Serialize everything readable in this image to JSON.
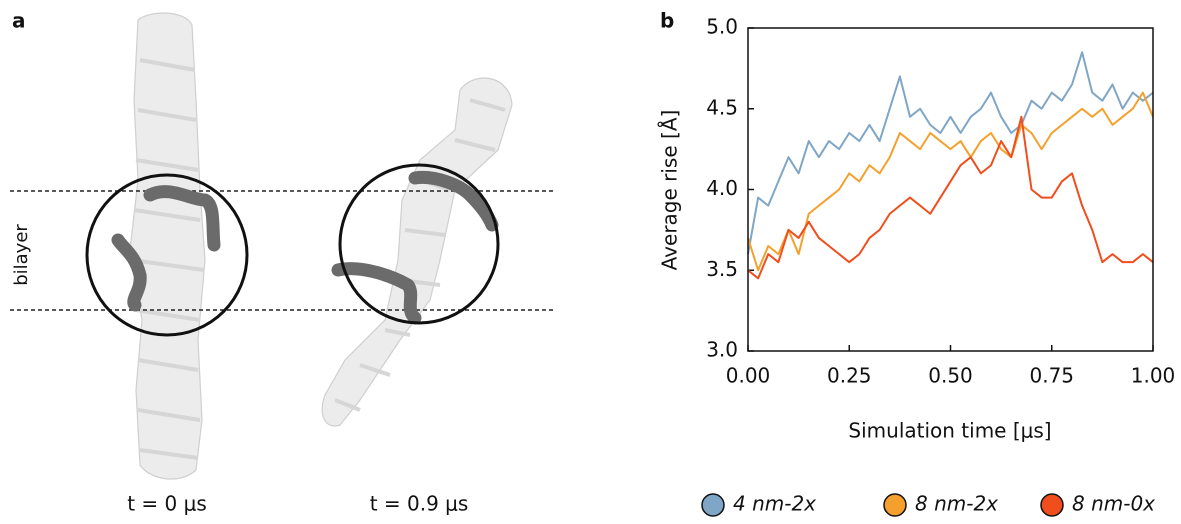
{
  "panel_a": {
    "label": "a",
    "region_label": "bilayer",
    "captions": [
      "t = 0 μs",
      "t = 0.9 μs"
    ]
  },
  "chart_data": {
    "type": "line",
    "panel_label": "b",
    "xlabel": "Simulation time [μs]",
    "ylabel": "Average rise [Å]",
    "x": [
      0,
      0.025,
      0.05,
      0.075,
      0.1,
      0.125,
      0.15,
      0.175,
      0.2,
      0.225,
      0.25,
      0.275,
      0.3,
      0.325,
      0.35,
      0.375,
      0.4,
      0.425,
      0.45,
      0.475,
      0.5,
      0.525,
      0.55,
      0.575,
      0.6,
      0.625,
      0.65,
      0.675,
      0.7,
      0.725,
      0.75,
      0.775,
      0.8,
      0.825,
      0.85,
      0.875,
      0.9,
      0.925,
      0.95,
      0.975,
      1
    ],
    "series": [
      {
        "name": "4 nm-2x",
        "color": "#7fa6c6",
        "values": [
          3.6,
          3.95,
          3.9,
          4.05,
          4.2,
          4.1,
          4.3,
          4.2,
          4.3,
          4.25,
          4.35,
          4.3,
          4.4,
          4.3,
          4.5,
          4.7,
          4.45,
          4.5,
          4.4,
          4.35,
          4.45,
          4.35,
          4.45,
          4.5,
          4.6,
          4.45,
          4.35,
          4.4,
          4.55,
          4.5,
          4.6,
          4.55,
          4.65,
          4.85,
          4.6,
          4.55,
          4.65,
          4.5,
          4.6,
          4.55,
          4.6
        ]
      },
      {
        "name": "8 nm-2x",
        "color": "#f5a02c",
        "values": [
          3.7,
          3.5,
          3.65,
          3.6,
          3.75,
          3.6,
          3.85,
          3.9,
          3.95,
          4.0,
          4.1,
          4.05,
          4.15,
          4.1,
          4.2,
          4.35,
          4.3,
          4.25,
          4.35,
          4.3,
          4.25,
          4.3,
          4.2,
          4.3,
          4.35,
          4.25,
          4.2,
          4.4,
          4.35,
          4.25,
          4.35,
          4.4,
          4.45,
          4.5,
          4.45,
          4.5,
          4.4,
          4.45,
          4.5,
          4.6,
          4.45
        ]
      },
      {
        "name": "8 nm-0x",
        "color": "#f04e1c",
        "values": [
          3.5,
          3.45,
          3.6,
          3.55,
          3.75,
          3.7,
          3.8,
          3.7,
          3.65,
          3.6,
          3.55,
          3.6,
          3.7,
          3.75,
          3.85,
          3.9,
          3.95,
          3.9,
          3.85,
          3.95,
          4.05,
          4.15,
          4.2,
          4.1,
          4.15,
          4.3,
          4.2,
          4.45,
          4.0,
          3.95,
          3.95,
          4.05,
          4.1,
          3.9,
          3.75,
          3.55,
          3.6,
          3.55,
          3.55,
          3.6,
          3.55
        ]
      }
    ],
    "xlim": [
      0,
      1
    ],
    "ylim": [
      3,
      5
    ],
    "xticks": [
      {
        "value": 0,
        "label": "0.00"
      },
      {
        "value": 0.25,
        "label": "0.25"
      },
      {
        "value": 0.5,
        "label": "0.50"
      },
      {
        "value": 0.75,
        "label": "0.75"
      },
      {
        "value": 1,
        "label": "1.00"
      }
    ],
    "yticks": [
      {
        "value": 3,
        "label": "3.0"
      },
      3.5,
      {
        "value": 4,
        "label": "4.0"
      },
      4.5,
      {
        "value": 5,
        "label": "5.0"
      }
    ],
    "grid": false,
    "legend": "bottom"
  }
}
